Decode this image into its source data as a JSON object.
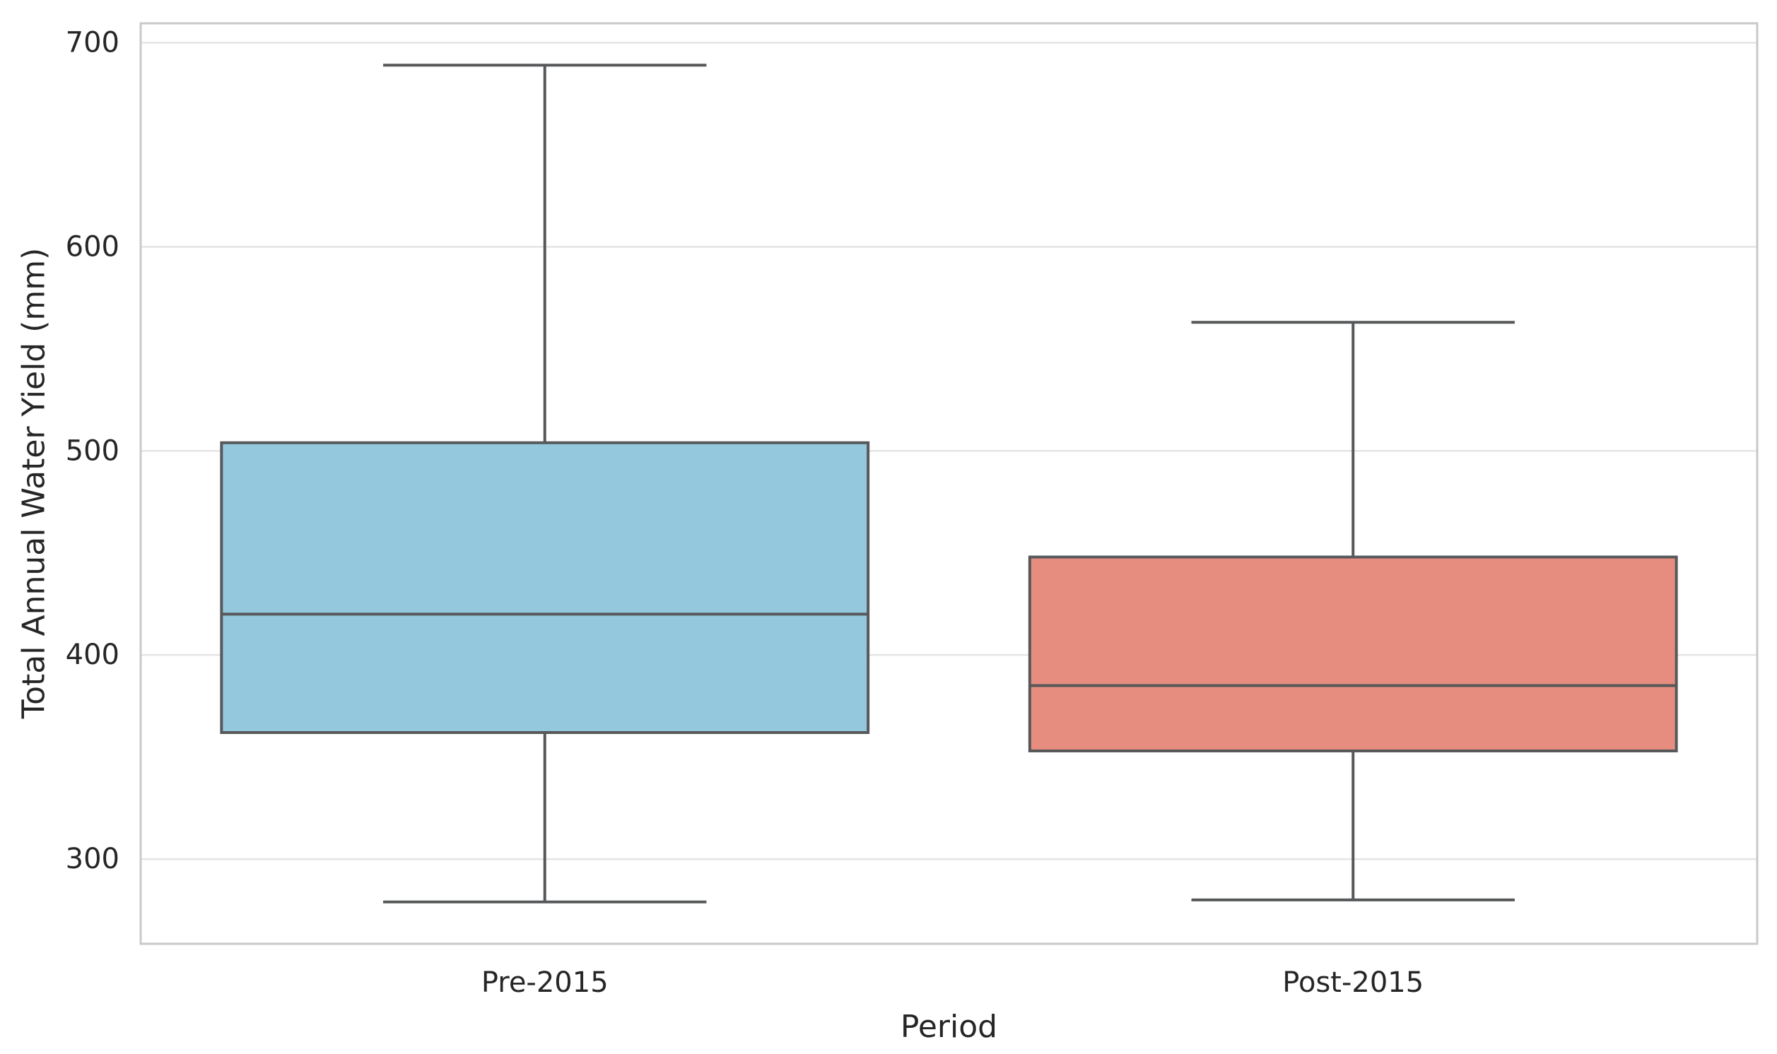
{
  "figure": {
    "background": "#FFFFFF"
  },
  "chart_data": {
    "type": "box",
    "title": "",
    "xlabel": "Period",
    "ylabel": "Total Annual Water Yield (mm)",
    "categories": [
      "Pre-2015",
      "Post-2015"
    ],
    "yticks": [
      300,
      400,
      500,
      600,
      700
    ],
    "ylim": [
      258.5,
      709.5
    ],
    "grid": "horizontal-gridlines-on",
    "legend": "none",
    "series": [
      {
        "name": "Pre-2015",
        "min": 279,
        "q1": 362,
        "median": 420,
        "q3": 504,
        "max": 689,
        "fill": "#94C9DD"
      },
      {
        "name": "Post-2015",
        "min": 280,
        "q1": 353,
        "median": 385,
        "q3": 448,
        "max": 563,
        "fill": "#E78D7F"
      }
    ],
    "colors": {
      "box_edge": "#56585A",
      "gridline": "#E4E4E4",
      "spine": "#C9C9C9",
      "text": "#262626"
    }
  }
}
